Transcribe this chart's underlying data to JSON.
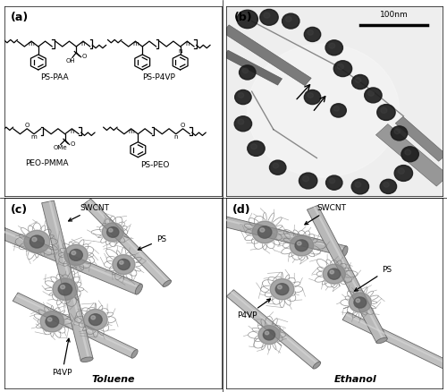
{
  "fig_width": 5.0,
  "fig_height": 4.38,
  "dpi": 100,
  "bg_color": "#ffffff",
  "panel_labels": [
    "(a)",
    "(b)",
    "(c)",
    "(d)"
  ],
  "panel_label_fontsize": 9,
  "panel_label_weight": "bold",
  "chem_names": [
    "PS-PAA",
    "PS-P4VP",
    "PEO-PMMA",
    "PS-PEO"
  ],
  "scalebar_text": "100nm",
  "toluene_label": "Toluene",
  "ethanol_label": "Ethanol",
  "line_color": "#000000"
}
